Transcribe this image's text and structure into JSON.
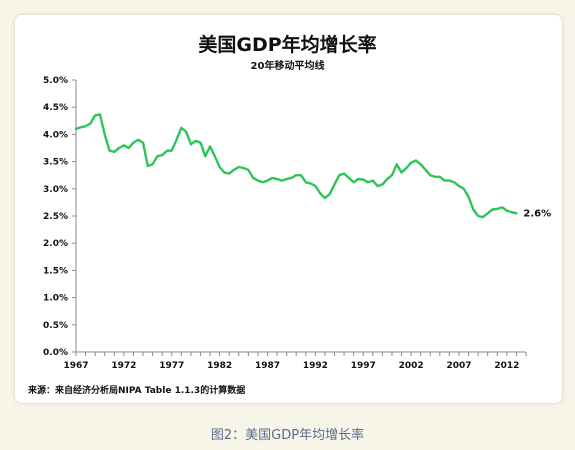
{
  "chart_data": {
    "type": "line",
    "title": "美国GDP年均增长率",
    "subtitle": "20年移动平均线",
    "source": "来源：来自经济分析局NIPA Table  1.1.3的计算数据",
    "ylim": [
      0.0,
      5.0
    ],
    "y_ticks": [
      "0.0%",
      "0.5%",
      "1.0%",
      "1.5%",
      "2.0%",
      "2.5%",
      "3.0%",
      "3.5%",
      "4.0%",
      "4.5%",
      "5.0%"
    ],
    "xlim": [
      1967,
      2014
    ],
    "x_ticks": [
      "1967",
      "1972",
      "1977",
      "1982",
      "1987",
      "1992",
      "1997",
      "2002",
      "2007",
      "2012"
    ],
    "end_label": "2.6%",
    "line_color": "#2ec45a",
    "series": [
      {
        "x": [
          1967,
          1967.5,
          1968,
          1968.5,
          1969,
          1969.5,
          1970,
          1970.5,
          1971,
          1971.5,
          1972,
          1972.5,
          1973,
          1973.5,
          1974,
          1974.5,
          1975,
          1975.5,
          1976,
          1976.5,
          1977,
          1977.5,
          1978,
          1978.5,
          1979,
          1979.5,
          1980,
          1980.5,
          1981,
          1981.5,
          1982,
          1982.5,
          1983,
          1983.5,
          1984,
          1984.5,
          1985,
          1985.5,
          1986,
          1986.5,
          1987,
          1987.5,
          1988,
          1988.5,
          1989,
          1989.5,
          1990,
          1990.5,
          1991,
          1991.5,
          1992,
          1992.5,
          1993,
          1993.5,
          1994,
          1994.5,
          1995,
          1995.5,
          1996,
          1996.5,
          1997,
          1997.5,
          1998,
          1998.5,
          1999,
          1999.5,
          2000,
          2000.5,
          2001,
          2001.5,
          2002,
          2002.5,
          2003,
          2003.5,
          2004,
          2004.5,
          2005,
          2005.5,
          2006,
          2006.5,
          2007,
          2007.5,
          2008,
          2008.5,
          2009,
          2009.5,
          2010,
          2010.5,
          2011,
          2011.5,
          2012,
          2012.5,
          2013
        ],
        "values": [
          4.1,
          4.13,
          4.15,
          4.2,
          4.35,
          4.37,
          4.0,
          3.7,
          3.68,
          3.75,
          3.8,
          3.75,
          3.85,
          3.9,
          3.85,
          3.42,
          3.45,
          3.6,
          3.62,
          3.7,
          3.7,
          3.9,
          4.12,
          4.05,
          3.82,
          3.88,
          3.85,
          3.6,
          3.78,
          3.6,
          3.4,
          3.3,
          3.28,
          3.35,
          3.4,
          3.38,
          3.35,
          3.2,
          3.15,
          3.12,
          3.15,
          3.2,
          3.18,
          3.15,
          3.18,
          3.2,
          3.25,
          3.25,
          3.12,
          3.1,
          3.05,
          2.92,
          2.83,
          2.9,
          3.08,
          3.25,
          3.28,
          3.2,
          3.12,
          3.18,
          3.17,
          3.12,
          3.15,
          3.05,
          3.08,
          3.18,
          3.25,
          3.45,
          3.3,
          3.38,
          3.48,
          3.52,
          3.45,
          3.35,
          3.25,
          3.22,
          3.22,
          3.15,
          3.15,
          3.12,
          3.05,
          3.0,
          2.85,
          2.62,
          2.5,
          2.48,
          2.55,
          2.62,
          2.63,
          2.66,
          2.6,
          2.57,
          2.55
        ]
      }
    ]
  },
  "caption": "图2：美国GDP年均增长率"
}
